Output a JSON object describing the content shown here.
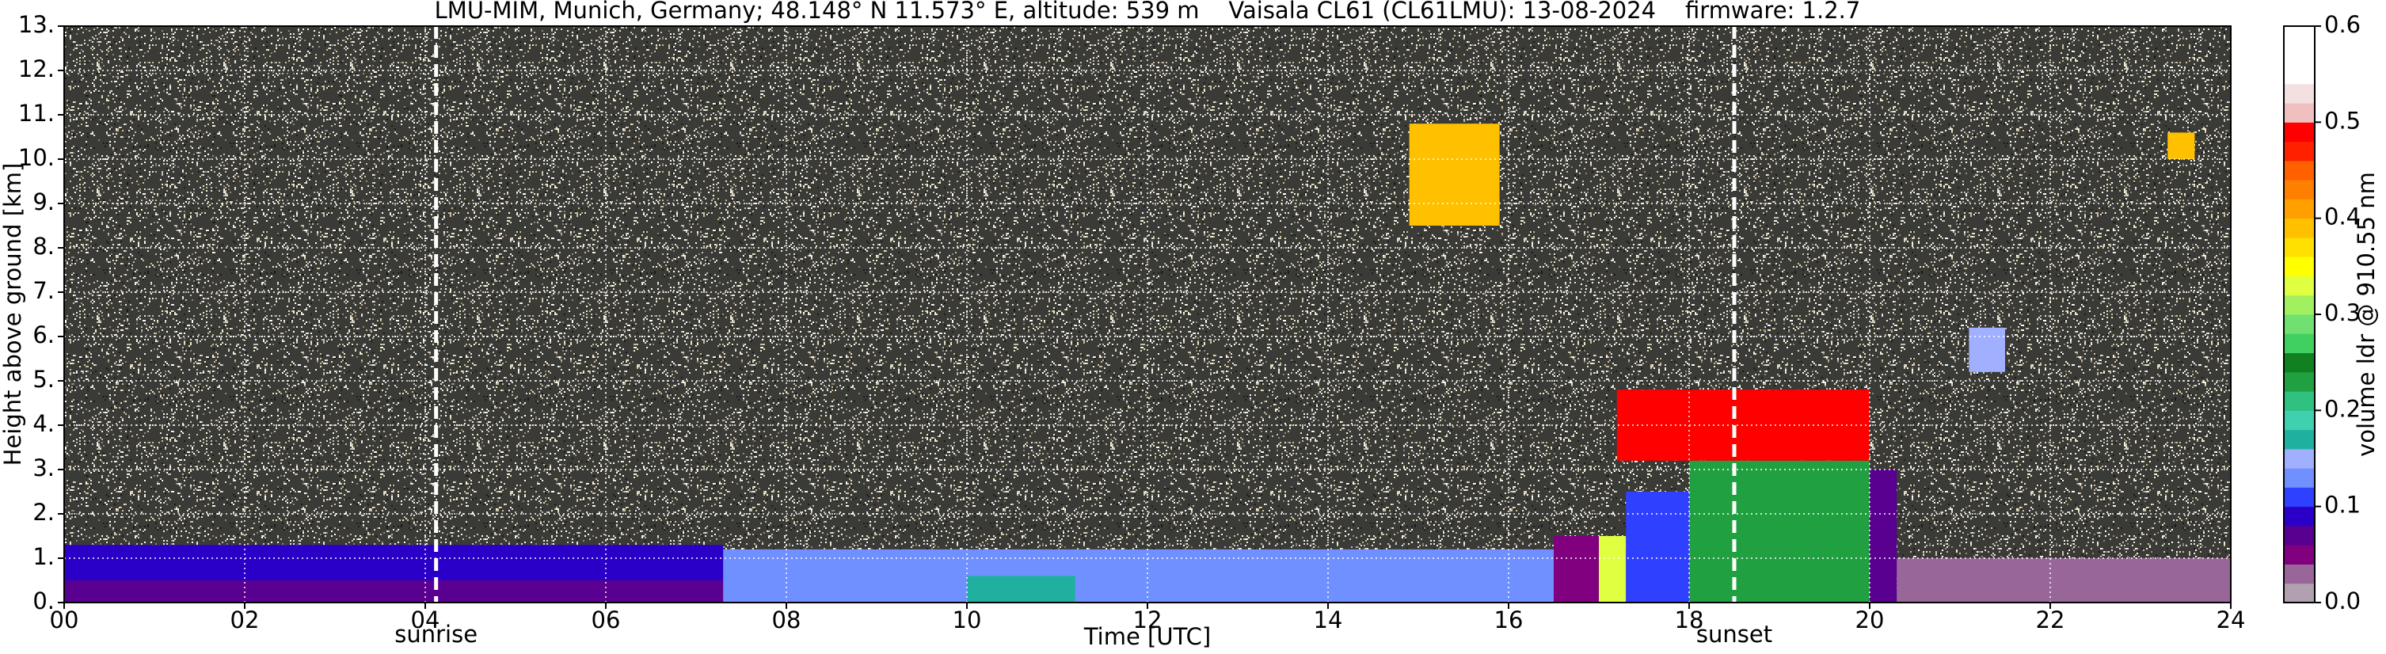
{
  "chart_data": {
    "type": "heatmap",
    "title": "LMU-MIM, Munich, Germany; 48.148° N 11.573° E, altitude: 539 m    Vaisala CL61 (CL61LMU): 13-08-2024    firmware: 1.2.7",
    "xlabel": "Time [UTC]",
    "ylabel": "Height above ground [km]",
    "xlim": [
      0,
      24
    ],
    "xticks": [
      {
        "value": 0,
        "label": "00"
      },
      {
        "value": 2,
        "label": "02"
      },
      {
        "value": 4,
        "label": "04"
      },
      {
        "value": 6,
        "label": "06"
      },
      {
        "value": 8,
        "label": "08"
      },
      {
        "value": 10,
        "label": "10"
      },
      {
        "value": 12,
        "label": "12"
      },
      {
        "value": 14,
        "label": "14"
      },
      {
        "value": 16,
        "label": "16"
      },
      {
        "value": 18,
        "label": "18"
      },
      {
        "value": 20,
        "label": "20"
      },
      {
        "value": 22,
        "label": "22"
      },
      {
        "value": 24,
        "label": "24"
      }
    ],
    "ylim": [
      0,
      13
    ],
    "yticks": [
      {
        "value": 0,
        "label": "0."
      },
      {
        "value": 1,
        "label": "1."
      },
      {
        "value": 2,
        "label": "2."
      },
      {
        "value": 3,
        "label": "3."
      },
      {
        "value": 4,
        "label": "4."
      },
      {
        "value": 5,
        "label": "5."
      },
      {
        "value": 6,
        "label": "6."
      },
      {
        "value": 7,
        "label": "7."
      },
      {
        "value": 8,
        "label": "8."
      },
      {
        "value": 9,
        "label": "9."
      },
      {
        "value": 10,
        "label": "10."
      },
      {
        "value": 11,
        "label": "11."
      },
      {
        "value": 12,
        "label": "12."
      },
      {
        "value": 13,
        "label": "13."
      }
    ],
    "grid": true,
    "annotations": [
      {
        "x": 4.12,
        "label": "sunrise"
      },
      {
        "x": 18.5,
        "label": "sunset"
      }
    ],
    "colorbar": {
      "label": "volume ldr @ 910.55 nm",
      "clim": [
        0,
        0.6
      ],
      "ticks": [
        {
          "value": 0,
          "label": "0.0"
        },
        0.1,
        0.2,
        0.3,
        0.4,
        0.5,
        0.6
      ],
      "colors": [
        "#b0a0b0",
        "#996699",
        "#800080",
        "#5a0090",
        "#2a00c8",
        "#3040ff",
        "#7090ff",
        "#a0b0ff",
        "#20b0a0",
        "#40d0b0",
        "#30c080",
        "#20a040",
        "#108020",
        "#40d060",
        "#70e070",
        "#a0f060",
        "#e0ff40",
        "#ffff00",
        "#ffe000",
        "#ffc000",
        "#ffa000",
        "#ff8000",
        "#ff6000",
        "#ff2000",
        "#ff0000",
        "#f0c0c0",
        "#f4e0e0",
        "#ffffff",
        "#ffffff",
        "#ffffff"
      ]
    },
    "cells": [
      {
        "x0": 0,
        "x1": 7.3,
        "y0": 0,
        "y1": 0.5,
        "value": 0.06
      },
      {
        "x0": 0,
        "x1": 7.3,
        "y0": 0.5,
        "y1": 1.3,
        "value": 0.09
      },
      {
        "x0": 7.3,
        "x1": 16.5,
        "y0": 0,
        "y1": 1.2,
        "value": 0.12
      },
      {
        "x0": 10,
        "x1": 11.2,
        "y0": 0,
        "y1": 0.6,
        "value": 0.17
      },
      {
        "x0": 16.5,
        "x1": 17,
        "y0": 0,
        "y1": 1.5,
        "value": 0.05
      },
      {
        "x0": 17,
        "x1": 17.3,
        "y0": 0,
        "y1": 1.5,
        "value": 0.33
      },
      {
        "x0": 17.3,
        "x1": 18,
        "y0": 0,
        "y1": 2.5,
        "value": 0.1
      },
      {
        "x0": 18,
        "x1": 20,
        "y0": 0,
        "y1": 3.2,
        "value": 0.22
      },
      {
        "x0": 20,
        "x1": 20.3,
        "y0": 0,
        "y1": 3,
        "value": 0.06
      },
      {
        "x0": 20.3,
        "x1": 24,
        "y0": 0,
        "y1": 1,
        "value": 0.03
      },
      {
        "x0": 17.2,
        "x1": 20,
        "y0": 3.2,
        "y1": 4.8,
        "value": 0.48
      },
      {
        "x0": 14.9,
        "x1": 15.9,
        "y0": 8.5,
        "y1": 10.8,
        "value": 0.38
      },
      {
        "x0": 21.1,
        "x1": 21.5,
        "y0": 5.2,
        "y1": 6.2,
        "value": 0.15
      },
      {
        "x0": 23.3,
        "x1": 23.6,
        "y0": 10,
        "y1": 10.6,
        "value": 0.38
      }
    ]
  }
}
